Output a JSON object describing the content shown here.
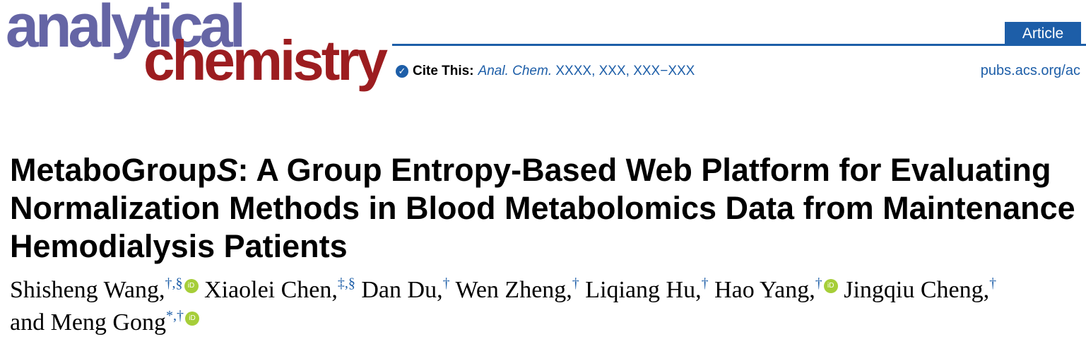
{
  "journal_logo": {
    "line1": "analytical",
    "line2": "chemistry",
    "colors": {
      "line1": "#6565a5",
      "line2": "#9c1d20"
    }
  },
  "header": {
    "article_type": "Article",
    "cite_label": "Cite This:",
    "cite_journal": "Anal. Chem.",
    "cite_ref": " XXXX, XXX, XXX−XXX",
    "url": "pubs.acs.org/ac",
    "accent": "#1d5ea8"
  },
  "title": {
    "prefix": "MetaboGroup",
    "italic": "S",
    "rest": ": A Group Entropy-Based Web Platform for Evaluating Normalization Methods in Blood Metabolomics Data from Maintenance Hemodialysis Patients"
  },
  "authors": [
    {
      "name": "Shisheng Wang,",
      "sup": "†,§",
      "orcid": true
    },
    {
      "name": "Xiaolei Chen,",
      "sup": "‡,§",
      "orcid": false
    },
    {
      "name": "Dan Du,",
      "sup": "†",
      "orcid": false
    },
    {
      "name": "Wen Zheng,",
      "sup": "†",
      "orcid": false
    },
    {
      "name": "Liqiang Hu,",
      "sup": "†",
      "orcid": false
    },
    {
      "name": "Hao Yang,",
      "sup": "†",
      "orcid": true
    },
    {
      "name": "Jingqiu Cheng,",
      "sup": "†",
      "orcid": false
    },
    {
      "name": "and Meng Gong",
      "sup": "*,†",
      "orcid": true
    }
  ],
  "orcid_label": "iD"
}
